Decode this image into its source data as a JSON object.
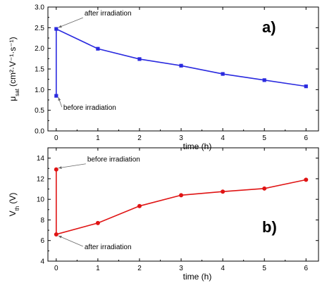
{
  "chart_data": [
    {
      "type": "line",
      "panel_label": "a)",
      "ylabel_main": "μ",
      "ylabel_sub": "sat",
      "ylabel_units": "(cm²·V⁻¹·s⁻¹)",
      "xlabel": "time (h)",
      "xlim": [
        -0.2,
        6.3
      ],
      "ylim": [
        0.0,
        3.0
      ],
      "xticks": [
        0,
        1,
        2,
        3,
        4,
        5,
        6
      ],
      "yticks": [
        "0.0",
        "0.5",
        "1.0",
        "1.5",
        "2.0",
        "2.5",
        "3.0"
      ],
      "color": "#2a2adf",
      "marker": "square",
      "series": [
        {
          "x": [
            0,
            0,
            1,
            2,
            3,
            4,
            5,
            6
          ],
          "y": [
            0.85,
            2.47,
            1.99,
            1.74,
            1.58,
            1.38,
            1.23,
            1.08
          ]
        }
      ],
      "annotations": [
        {
          "text": "after irradiation",
          "x": 0,
          "y": 2.47
        },
        {
          "text": "before irradiation",
          "x": 0,
          "y": 0.85
        }
      ]
    },
    {
      "type": "line",
      "panel_label": "b)",
      "ylabel_main": "V",
      "ylabel_sub": "th",
      "ylabel_units": "(V)",
      "xlabel": "time (h)",
      "xlim": [
        -0.2,
        6.3
      ],
      "ylim": [
        4,
        15
      ],
      "xticks": [
        0,
        1,
        2,
        3,
        4,
        5,
        6
      ],
      "yticks": [
        "4",
        "6",
        "8",
        "10",
        "12",
        "14"
      ],
      "color": "#e01414",
      "marker": "circle",
      "series": [
        {
          "x": [
            0,
            0,
            1,
            2,
            3,
            4,
            5,
            6
          ],
          "y": [
            12.9,
            6.6,
            7.7,
            9.35,
            10.4,
            10.75,
            11.05,
            11.9
          ]
        }
      ],
      "annotations": [
        {
          "text": "before irradiation",
          "x": 0,
          "y": 12.9
        },
        {
          "text": "after irradiation",
          "x": 0,
          "y": 6.6
        }
      ]
    }
  ]
}
